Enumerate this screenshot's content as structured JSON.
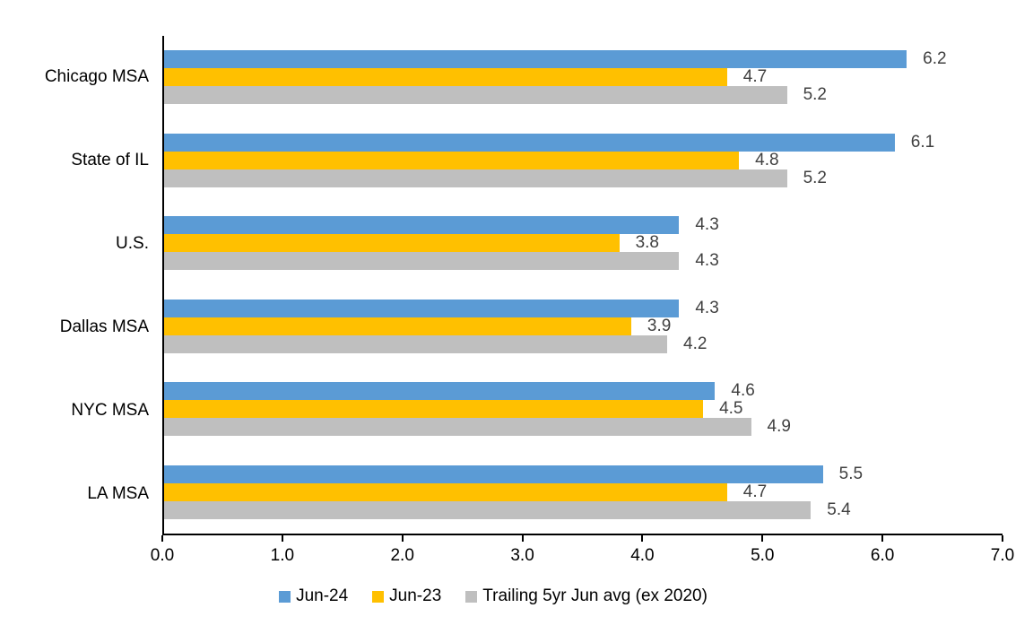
{
  "chart_data": {
    "type": "bar",
    "orientation": "horizontal",
    "title": "",
    "xlabel": "",
    "ylabel": "",
    "categories": [
      "Chicago MSA",
      "State of IL",
      "U.S.",
      "Dallas MSA",
      "NYC MSA",
      "LA MSA"
    ],
    "series": [
      {
        "name": "Jun-24",
        "color": "#5B9BD5",
        "values": [
          6.2,
          6.1,
          4.3,
          4.3,
          4.6,
          5.5
        ]
      },
      {
        "name": "Jun-23",
        "color": "#FFC000",
        "values": [
          4.7,
          4.8,
          3.8,
          3.9,
          4.5,
          4.7
        ]
      },
      {
        "name": "Trailing 5yr Jun avg (ex 2020)",
        "color": "#BFBFBF",
        "values": [
          5.2,
          5.2,
          4.3,
          4.2,
          4.9,
          5.4
        ]
      }
    ],
    "xlim": [
      0,
      7
    ],
    "x_ticks": [
      "0.0",
      "1.0",
      "2.0",
      "3.0",
      "4.0",
      "5.0",
      "6.0",
      "7.0"
    ],
    "value_labels_shown": true,
    "grid": false,
    "legend_position": "bottom"
  },
  "colors": {
    "axis": "#000000",
    "value_label_text": "#404040",
    "category_text": "#000000",
    "background": "#FFFFFF"
  }
}
